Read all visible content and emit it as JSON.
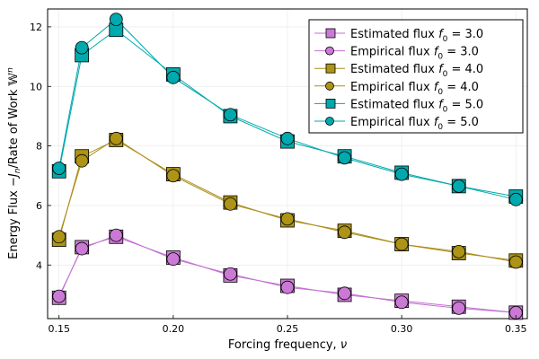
{
  "chart_data": {
    "type": "line",
    "xlabel": "Forcing frequency, ν",
    "ylabel": "Energy Flux −J_n/Rate of Work W^n",
    "xlim": [
      0.145,
      0.355
    ],
    "ylim": [
      2.2,
      12.6
    ],
    "xticks": [
      0.15,
      0.2,
      0.25,
      0.3,
      0.35
    ],
    "xtick_labels": [
      "0.15",
      "0.20",
      "0.25",
      "0.30",
      "0.35"
    ],
    "yticks": [
      4,
      6,
      8,
      10,
      12
    ],
    "ytick_labels": [
      "4",
      "6",
      "8",
      "10",
      "12"
    ],
    "grid": true,
    "legend_position": "top-right",
    "x": [
      0.15,
      0.16,
      0.175,
      0.2,
      0.225,
      0.25,
      0.275,
      0.3,
      0.325,
      0.35
    ],
    "series": [
      {
        "name": "Estimated flux f_0 = 3.0",
        "label_main": "Estimated flux",
        "label_f": "f",
        "label_sub": "0",
        "label_val": "=  3.0",
        "marker": "square",
        "fill": "#ca7ad4",
        "line": "#c271d2",
        "values": [
          2.9,
          4.6,
          4.95,
          4.25,
          3.65,
          3.3,
          3.0,
          2.8,
          2.6,
          2.4
        ]
      },
      {
        "name": "Empirical flux f_0 = 3.0",
        "label_main": "Empirical flux",
        "label_f": "f",
        "label_sub": "0",
        "label_val": "=  3.0",
        "marker": "circle",
        "fill": "#ca7ad4",
        "line": "#c271d2",
        "values": [
          2.95,
          4.55,
          5.0,
          4.2,
          3.7,
          3.25,
          3.05,
          2.75,
          2.55,
          2.4
        ]
      },
      {
        "name": "Estimated flux f_0 = 4.0",
        "label_main": "Estimated flux",
        "label_f": "f",
        "label_sub": "0",
        "label_val": "=  4.0",
        "marker": "square",
        "fill": "#ad9316",
        "line": "#ac8d18",
        "values": [
          4.85,
          7.65,
          8.2,
          7.05,
          6.1,
          5.5,
          5.15,
          4.7,
          4.4,
          4.15
        ]
      },
      {
        "name": "Empirical flux f_0 = 4.0",
        "label_main": "Empirical flux",
        "label_f": "f",
        "label_sub": "0",
        "label_val": "=  4.0",
        "marker": "circle",
        "fill": "#ad9316",
        "line": "#ac8d18",
        "values": [
          4.95,
          7.5,
          8.25,
          7.0,
          6.05,
          5.55,
          5.1,
          4.7,
          4.45,
          4.1
        ]
      },
      {
        "name": "Estimated flux f_0 = 5.0",
        "label_main": "Estimated flux",
        "label_f": "f",
        "label_sub": "0",
        "label_val": "=  5.0",
        "marker": "square",
        "fill": "#00a9ad",
        "line": "#00a9ad",
        "values": [
          7.15,
          11.05,
          11.9,
          10.4,
          9.0,
          8.15,
          7.65,
          7.1,
          6.65,
          6.3
        ]
      },
      {
        "name": "Empirical flux f_0 = 5.0",
        "label_main": "Empirical flux",
        "label_f": "f",
        "label_sub": "0",
        "label_val": "=  5.0",
        "marker": "circle",
        "fill": "#00a9ad",
        "line": "#00a9ad",
        "values": [
          7.25,
          11.3,
          12.25,
          10.3,
          9.05,
          8.25,
          7.6,
          7.05,
          6.65,
          6.2
        ]
      }
    ]
  }
}
